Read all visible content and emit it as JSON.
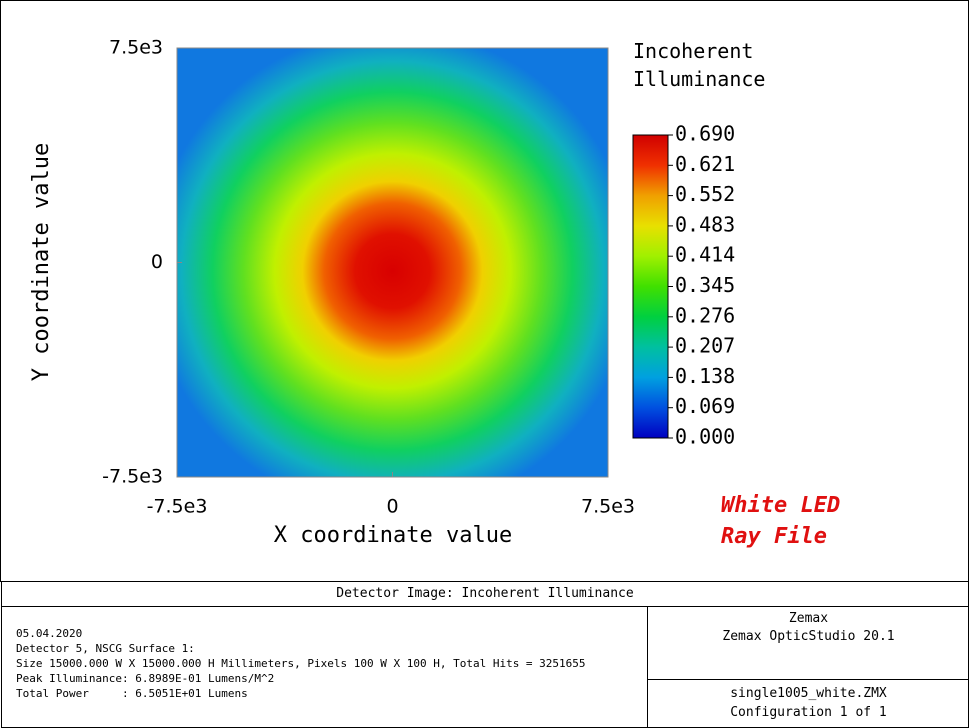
{
  "chart_data": {
    "type": "heatmap",
    "xlabel": "X coordinate value",
    "ylabel": "Y coordinate value",
    "xlim": [
      -7500,
      7500
    ],
    "ylim": [
      -7500,
      7500
    ],
    "xticks": [
      {
        "value": -7500,
        "label": "-7.5e3"
      },
      0,
      {
        "value": 7500,
        "label": "7.5e3"
      }
    ],
    "yticks": [
      {
        "value": -7500,
        "label": "-7.5e3"
      },
      0,
      {
        "value": 7500,
        "label": "7.5e3"
      }
    ],
    "colorbar_title": "Incoherent Illuminance",
    "clim": [
      0,
      0.69
    ],
    "cticks": [
      {
        "value": 0.69,
        "label": "0.690"
      },
      0.621,
      0.552,
      0.483,
      0.414,
      0.345,
      0.276,
      0.207,
      0.138,
      0.069,
      {
        "value": 0,
        "label": "0.000"
      }
    ],
    "annotation": [
      "White LED",
      "Ray File"
    ]
  },
  "footer": {
    "title": "Detector Image: Incoherent Illuminance",
    "info_lines": [
      "05.04.2020",
      "Detector 5, NSCG Surface 1:",
      "Size 15000.000 W X 15000.000 H Millimeters, Pixels 100 W X 100 H, Total Hits = 3251655",
      "Peak Illuminance: 6.8989E-01 Lumens/M^2",
      "Total Power     : 6.5051E+01 Lumens"
    ],
    "company": "Zemax",
    "software": "Zemax OpticStudio 20.1",
    "file": "single1005_white.ZMX",
    "configuration": "Configuration 1 of 1"
  }
}
